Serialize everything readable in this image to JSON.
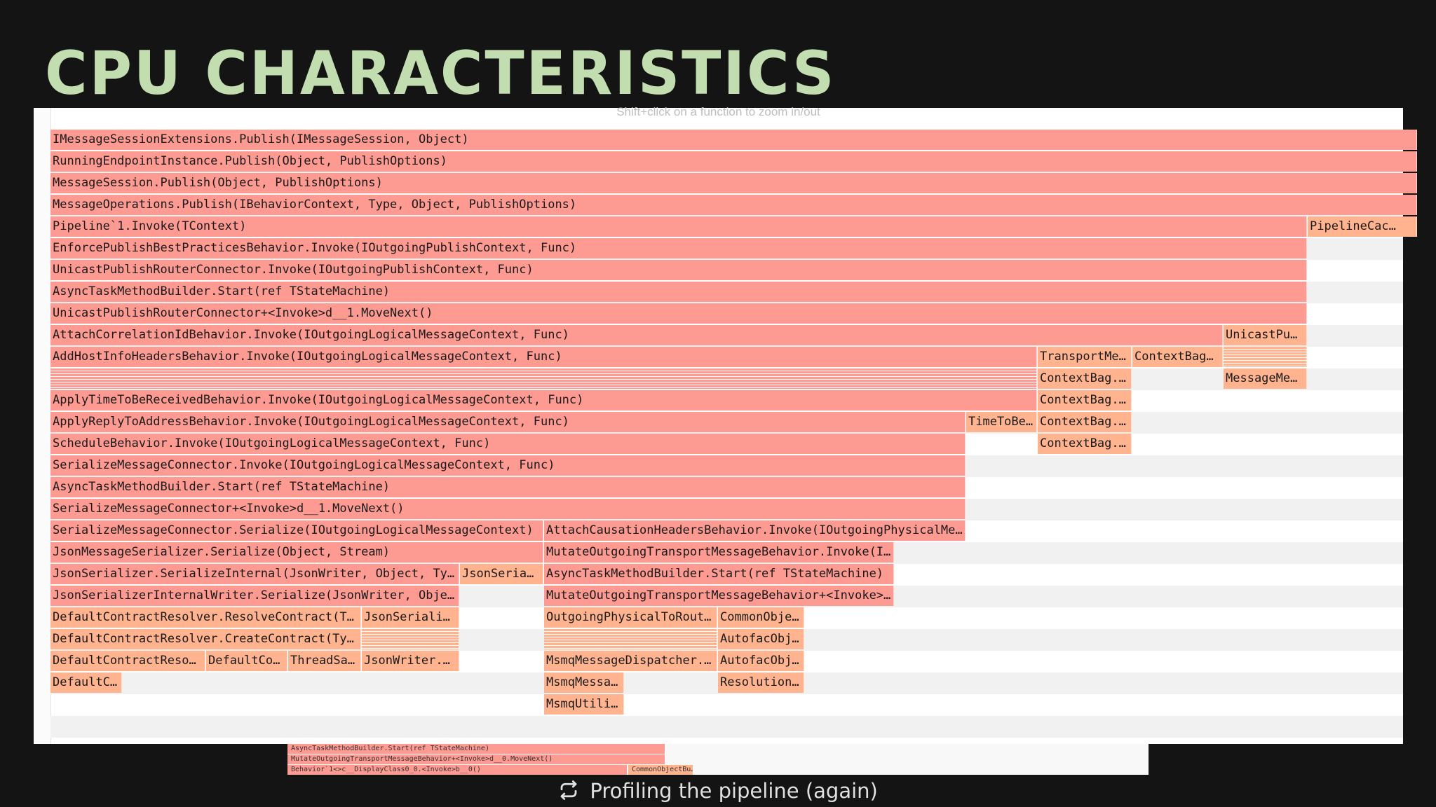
{
  "slide": {
    "title": "CPU CHARACTERISTICS",
    "caption": "Profiling the pipeline (again)",
    "caption_icon": "refresh-icon"
  },
  "flamegraph": {
    "hint": "Shift+click on a function to zoom in/out",
    "colors": {
      "primary": "#fd9a92",
      "secondary": "#ffb38f"
    },
    "rows": [
      [
        {
          "label": "IMessageSessionExtensions.Publish(IMessageSession, Object)",
          "c": "red"
        }
      ],
      [
        {
          "label": "RunningEndpointInstance.Publish(Object, PublishOptions)",
          "c": "red"
        }
      ],
      [
        {
          "label": "MessageSession.Publish(Object, PublishOptions)",
          "c": "red"
        }
      ],
      [
        {
          "label": "MessageOperations.Publish(IBehaviorContext, Type, Object, PublishOptions)",
          "c": "red"
        }
      ],
      [
        {
          "label": "Pipeline`1.Invoke(TContext)",
          "c": "red"
        },
        {
          "label": "PipelineCac…",
          "c": "orange"
        }
      ],
      [
        {
          "label": "EnforcePublishBestPracticesBehavior.Invoke(IOutgoingPublishContext, Func)",
          "c": "red"
        }
      ],
      [
        {
          "label": "UnicastPublishRouterConnector.Invoke(IOutgoingPublishContext, Func)",
          "c": "red"
        }
      ],
      [
        {
          "label": "AsyncTaskMethodBuilder.Start(ref TStateMachine)",
          "c": "red"
        }
      ],
      [
        {
          "label": "UnicastPublishRouterConnector+<Invoke>d__1.MoveNext()",
          "c": "red"
        }
      ],
      [
        {
          "label": "AttachCorrelationIdBehavior.Invoke(IOutgoingLogicalMessageContext, Func)",
          "c": "red"
        },
        {
          "label": "UnicastPu…",
          "c": "orange"
        }
      ],
      [
        {
          "label": "AddHostInfoHeadersBehavior.Invoke(IOutgoingLogicalMessageContext, Func)",
          "c": "red"
        },
        {
          "label": "TransportMe…",
          "c": "orange"
        },
        {
          "label": "ContextBag…",
          "c": "orange"
        },
        {
          "label": "",
          "c": "striped o"
        }
      ],
      [
        {
          "label": "",
          "c": "striped"
        },
        {
          "label": "ContextBag.…",
          "c": "orange"
        },
        {
          "label": "MessageMe…",
          "c": "orange"
        }
      ],
      [
        {
          "label": "ApplyTimeToBeReceivedBehavior.Invoke(IOutgoingLogicalMessageContext, Func)",
          "c": "red"
        },
        {
          "label": "ContextBag.…",
          "c": "orange"
        }
      ],
      [
        {
          "label": "ApplyReplyToAddressBehavior.Invoke(IOutgoingLogicalMessageContext, Func)",
          "c": "red"
        },
        {
          "label": "TimeToBe…",
          "c": "orange"
        },
        {
          "label": "ContextBag.…",
          "c": "orange"
        }
      ],
      [
        {
          "label": "ScheduleBehavior.Invoke(IOutgoingLogicalMessageContext, Func)",
          "c": "red"
        },
        {
          "label": "ContextBag.…",
          "c": "orange"
        }
      ],
      [
        {
          "label": "SerializeMessageConnector.Invoke(IOutgoingLogicalMessageContext, Func)",
          "c": "red"
        }
      ],
      [
        {
          "label": "AsyncTaskMethodBuilder.Start(ref TStateMachine)",
          "c": "red"
        }
      ],
      [
        {
          "label": "SerializeMessageConnector+<Invoke>d__1.MoveNext()",
          "c": "red"
        }
      ],
      [
        {
          "label": "SerializeMessageConnector.Serialize(IOutgoingLogicalMessageContext)",
          "c": "red"
        },
        {
          "label": "AttachCausationHeadersBehavior.Invoke(IOutgoingPhysicalMe…",
          "c": "red"
        }
      ],
      [
        {
          "label": "JsonMessageSerializer.Serialize(Object, Stream)",
          "c": "red"
        },
        {
          "label": "MutateOutgoingTransportMessageBehavior.Invoke(I…",
          "c": "red"
        }
      ],
      [
        {
          "label": "JsonSerializer.SerializeInternal(JsonWriter, Object, Ty…",
          "c": "red"
        },
        {
          "label": "JsonSeria…",
          "c": "orange"
        },
        {
          "label": "AsyncTaskMethodBuilder.Start(ref TStateMachine)",
          "c": "red"
        }
      ],
      [
        {
          "label": "JsonSerializerInternalWriter.Serialize(JsonWriter, Obje…",
          "c": "red"
        },
        {
          "label": "MutateOutgoingTransportMessageBehavior+<Invoke>…",
          "c": "red"
        }
      ],
      [
        {
          "label": "DefaultContractResolver.ResolveContract(T…",
          "c": "orange"
        },
        {
          "label": "JsonSeriali…",
          "c": "orange"
        },
        {
          "label": "OutgoingPhysicalToRout…",
          "c": "orange"
        },
        {
          "label": "CommonObje…",
          "c": "orange"
        }
      ],
      [
        {
          "label": "DefaultContractResolver.CreateContract(Ty…",
          "c": "orange"
        },
        {
          "label": "",
          "c": "striped o"
        },
        {
          "label": "",
          "c": "striped o"
        },
        {
          "label": "AutofacObj…",
          "c": "orange"
        }
      ],
      [
        {
          "label": "DefaultContractReso…",
          "c": "orange"
        },
        {
          "label": "DefaultCo…",
          "c": "orange"
        },
        {
          "label": "ThreadSa…",
          "c": "orange"
        },
        {
          "label": "JsonWriter.…",
          "c": "orange"
        },
        {
          "label": "MsmqMessageDispatcher.…",
          "c": "orange"
        },
        {
          "label": "AutofacObj…",
          "c": "orange"
        }
      ],
      [
        {
          "label": "DefaultC…",
          "c": "orange"
        },
        {
          "label": "MsmqMessa…",
          "c": "orange"
        },
        {
          "label": "Resolution…",
          "c": "orange"
        }
      ],
      [
        {
          "label": "MsmqUtili…",
          "c": "orange"
        }
      ]
    ]
  },
  "minimap": {
    "rows": [
      {
        "label": "AsyncTaskMethodBuilder.Start(ref TStateMachine)"
      },
      {
        "label": "MutateOutgoingTransportMessageBehavior+<Invoke>d__0.MoveNext()"
      },
      {
        "label": "Behavior`1<>c__DisplayClass0_0.<Invoke>b__0()"
      },
      {
        "label": "CommonObjectBu…"
      }
    ]
  }
}
